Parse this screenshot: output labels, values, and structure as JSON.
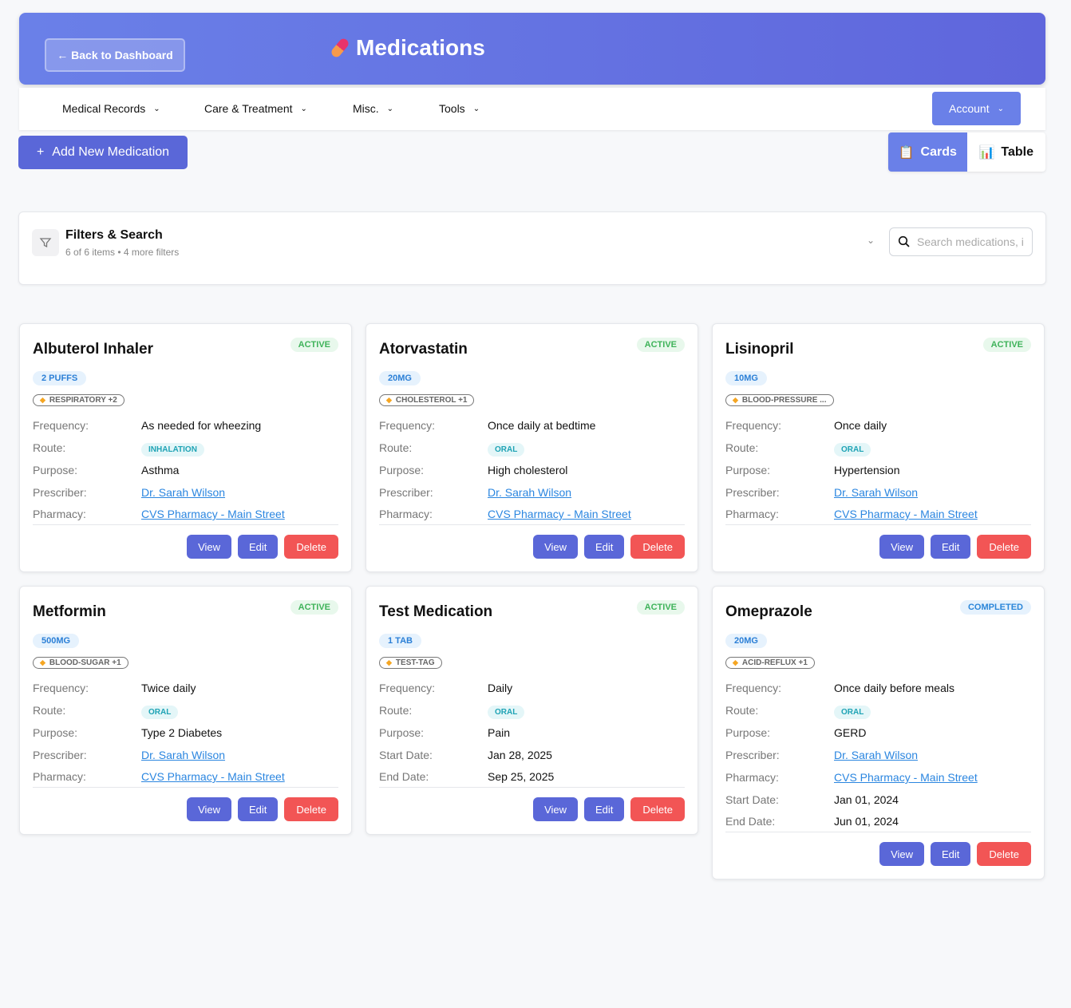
{
  "header": {
    "back_label": "← Back to Dashboard",
    "title": "Medications",
    "title_icon": "pill-icon"
  },
  "nav": {
    "items": [
      {
        "label": "Medical Records"
      },
      {
        "label": "Care & Treatment"
      },
      {
        "label": "Misc."
      },
      {
        "label": "Tools"
      }
    ],
    "account_label": "Account"
  },
  "toolbar": {
    "add_label": "Add New Medication",
    "view_cards": "Cards",
    "view_table": "Table",
    "active_view": "Cards"
  },
  "filters": {
    "title": "Filters & Search",
    "subtitle": "6 of 6 items • 4 more filters",
    "search_placeholder": "Search medications, i"
  },
  "colors": {
    "primary": "#5a67d8",
    "header": "#6a80e8",
    "delete": "#f25555",
    "active": "#3fb35a",
    "completed": "#2b86d9"
  },
  "labels": {
    "frequency": "Frequency:",
    "route": "Route:",
    "purpose": "Purpose:",
    "prescriber": "Prescriber:",
    "pharmacy": "Pharmacy:",
    "start": "Start Date:",
    "end": "End Date:",
    "view": "View",
    "edit": "Edit",
    "delete": "Delete"
  },
  "medications": [
    {
      "name": "Albuterol Inhaler",
      "status": "ACTIVE",
      "dose": "2 PUFFS",
      "tag": "RESPIRATORY +2",
      "frequency": "As needed for wheezing",
      "route": "INHALATION",
      "purpose": "Asthma",
      "prescriber": "Dr. Sarah Wilson",
      "pharmacy": "CVS Pharmacy - Main Street"
    },
    {
      "name": "Atorvastatin",
      "status": "ACTIVE",
      "dose": "20MG",
      "tag": "CHOLESTEROL +1",
      "frequency": "Once daily at bedtime",
      "route": "ORAL",
      "purpose": "High cholesterol",
      "prescriber": "Dr. Sarah Wilson",
      "pharmacy": "CVS Pharmacy - Main Street"
    },
    {
      "name": "Lisinopril",
      "status": "ACTIVE",
      "dose": "10MG",
      "tag": "BLOOD-PRESSURE ...",
      "frequency": "Once daily",
      "route": "ORAL",
      "purpose": "Hypertension",
      "prescriber": "Dr. Sarah Wilson",
      "pharmacy": "CVS Pharmacy - Main Street"
    },
    {
      "name": "Metformin",
      "status": "ACTIVE",
      "dose": "500MG",
      "tag": "BLOOD-SUGAR +1",
      "frequency": "Twice daily",
      "route": "ORAL",
      "purpose": "Type 2 Diabetes",
      "prescriber": "Dr. Sarah Wilson",
      "pharmacy": "CVS Pharmacy - Main Street"
    },
    {
      "name": "Test Medication",
      "status": "ACTIVE",
      "dose": "1 TAB",
      "tag": "TEST-TAG",
      "frequency": "Daily",
      "route": "ORAL",
      "purpose": "Pain",
      "start_date": "Jan 28, 2025",
      "end_date": "Sep 25, 2025"
    },
    {
      "name": "Omeprazole",
      "status": "COMPLETED",
      "dose": "20MG",
      "tag": "ACID-REFLUX +1",
      "frequency": "Once daily before meals",
      "route": "ORAL",
      "purpose": "GERD",
      "prescriber": "Dr. Sarah Wilson",
      "pharmacy": "CVS Pharmacy - Main Street",
      "start_date": "Jan 01, 2024",
      "end_date": "Jun 01, 2024"
    }
  ]
}
